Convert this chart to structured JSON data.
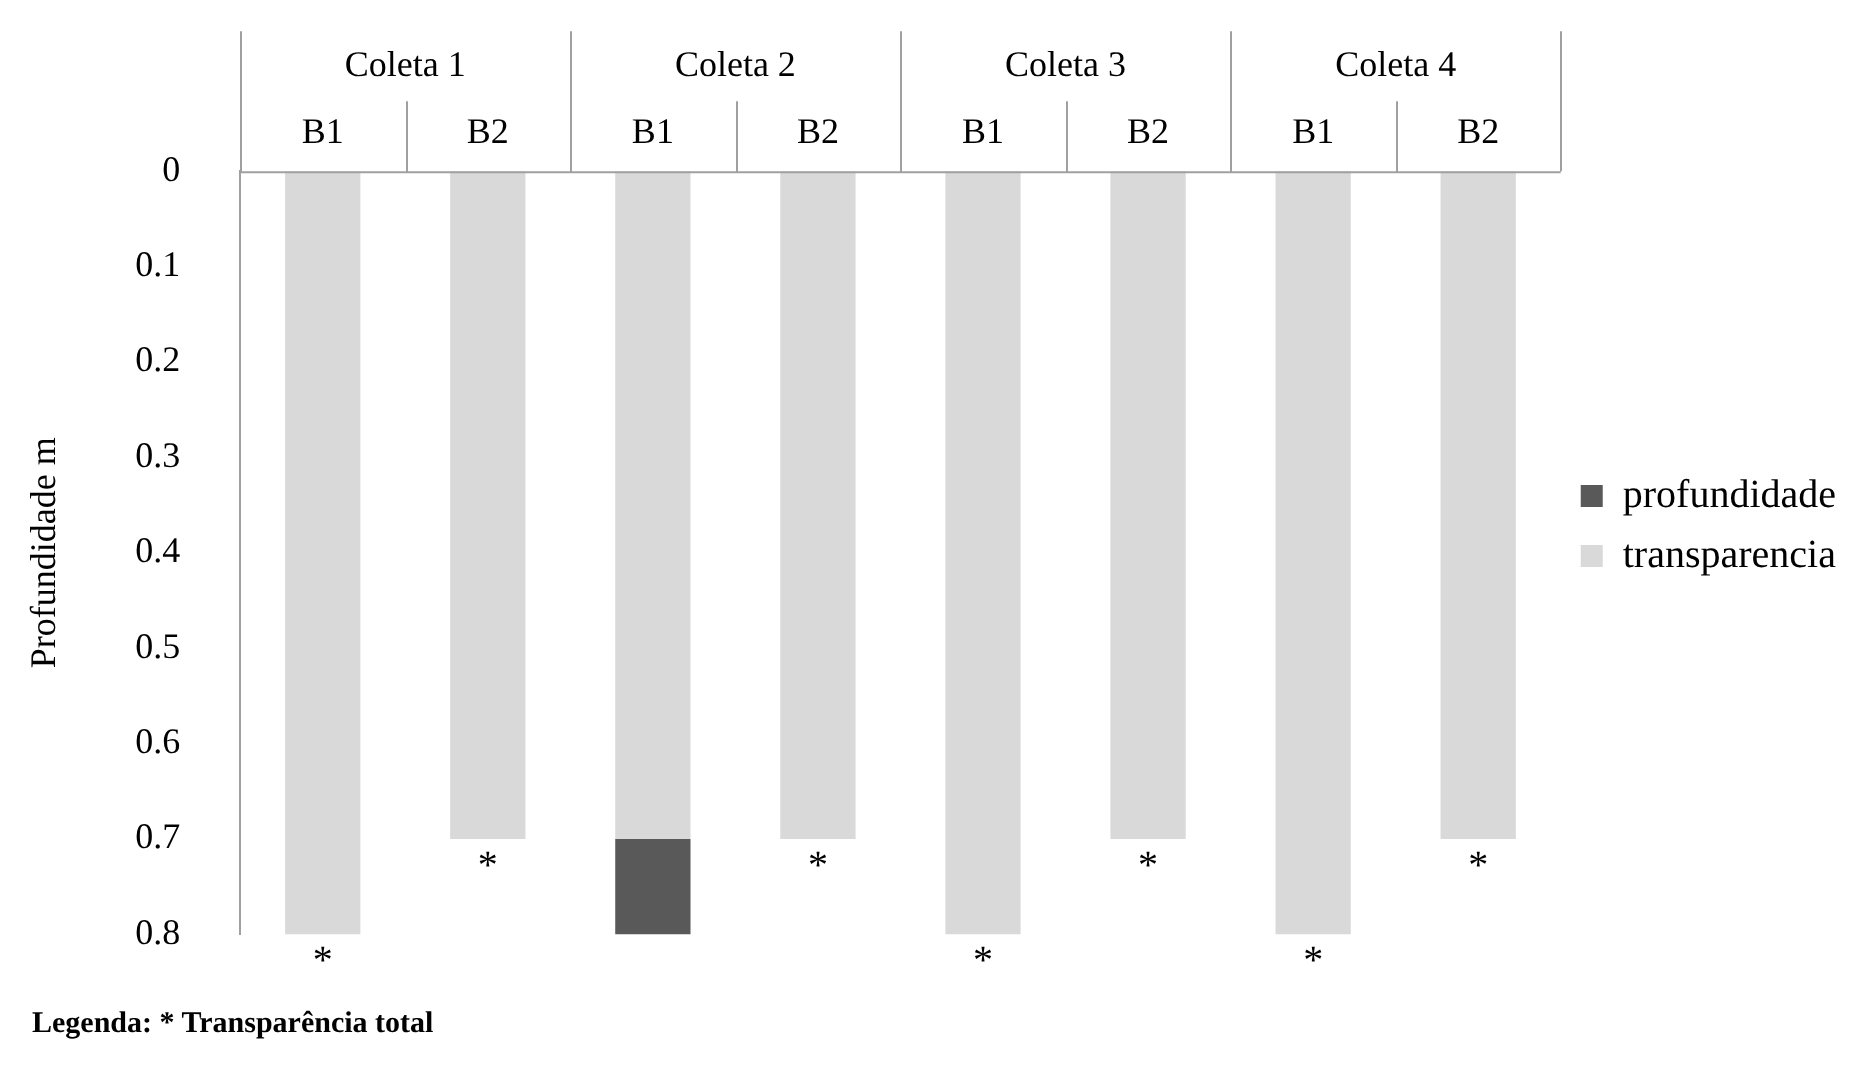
{
  "chart_data": {
    "type": "bar",
    "stacked": true,
    "ylabel": "Profundidade m",
    "categories": [
      "B1",
      "B2",
      "B1",
      "B2",
      "B1",
      "B2",
      "B1",
      "B2"
    ],
    "series": [
      {
        "name": "transparencia",
        "color": "#d9d9d9",
        "values": [
          0.8,
          0.7,
          0.7,
          0.7,
          0.8,
          0.7,
          0.8,
          0.7
        ],
        "value_labels": [
          "*",
          "*",
          null,
          "*",
          "*",
          "*",
          "*",
          "*"
        ]
      },
      {
        "name": "profundidade",
        "color": "#595959",
        "values": [
          null,
          null,
          0.1,
          null,
          null,
          null,
          null,
          null
        ]
      }
    ],
    "ylim": [
      0.8,
      0
    ],
    "yticks": [
      0,
      0.1,
      0.2,
      0.3,
      0.4,
      0.5,
      0.6,
      0.7,
      0.8
    ],
    "grid": false,
    "legend": "right",
    "annotations": [
      "Coleta 1",
      "Coleta 2",
      "Coleta 3",
      "Coleta 4",
      "Legenda: * Transparência total"
    ]
  }
}
